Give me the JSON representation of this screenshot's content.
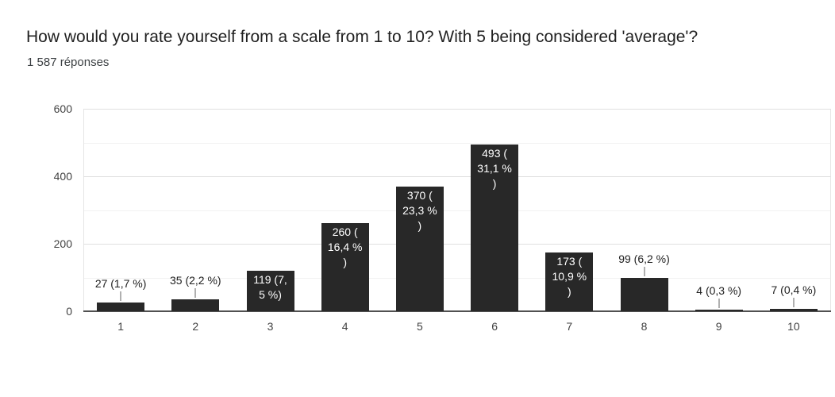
{
  "header": {
    "title": "How would you rate yourself from a scale from 1 to 10? With 5 being considered 'average'?",
    "responses_count": "1 587 réponses"
  },
  "chart_data": {
    "type": "bar",
    "title": "How would you rate yourself from a scale from 1 to 10? With 5 being considered 'average'?",
    "subtitle": "1 587 réponses",
    "xlabel": "",
    "ylabel": "",
    "categories": [
      "1",
      "2",
      "3",
      "4",
      "5",
      "6",
      "7",
      "8",
      "9",
      "10"
    ],
    "values": [
      27,
      35,
      119,
      260,
      370,
      493,
      173,
      99,
      4,
      7
    ],
    "labels": [
      "27 (1,7 %)",
      "35 (2,2 %)",
      "119 (7,5 %)",
      "260 (16,4 %)",
      "370 (23,3 %)",
      "493 (31,1 %)",
      "173 (10,9 %)",
      "99 (6,2 %)",
      "4 (0,3 %)",
      "7 (0,4 %)"
    ],
    "label_display": [
      "27 (1,7 %)",
      "35 (2,2 %)",
      "119 (7,\n5 %)",
      "260 (\n16,4 %\n)",
      "370 (\n23,3 %\n)",
      "493 (\n31,1 %\n)",
      "173 (\n10,9 %\n)",
      "99 (6,2 %)",
      "4 (0,3 %)",
      "7 (0,4 %)"
    ],
    "label_position": [
      "above",
      "above",
      "inside",
      "inside",
      "inside",
      "inside",
      "inside",
      "above",
      "above",
      "above"
    ],
    "ylim": [
      0,
      600
    ],
    "yticks": [
      0,
      200,
      400,
      600
    ],
    "minor_gridlines": [
      100,
      300,
      500
    ],
    "grid": true,
    "legend_position": "none",
    "colors": {
      "bar": "#282828",
      "label_inside_text": "#ffffff",
      "label_above_text": "#212121",
      "major_gridline": "#e0e0e0",
      "minor_gridline": "#f2f2f2",
      "baseline": "#515151",
      "axis_text": "#424242",
      "title_text": "#212121",
      "callout": "#b0b0b0"
    }
  }
}
